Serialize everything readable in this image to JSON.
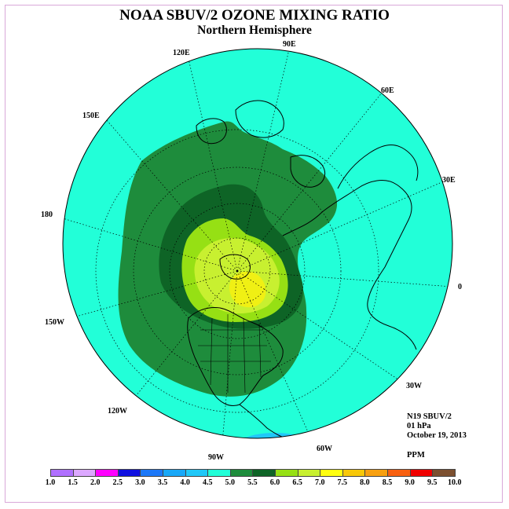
{
  "title": "NOAA SBUV/2 OZONE MIXING RATIO",
  "subtitle": "Northern Hemisphere",
  "map": {
    "projection": "north-polar-stereographic",
    "longitude_labels": [
      "90E",
      "60E",
      "30E",
      "0",
      "30W",
      "60W",
      "90W",
      "120W",
      "150W",
      "180",
      "150E",
      "120E"
    ],
    "ocean_color": "#22ffd8",
    "contour_colors": {
      "4.5-5.0": "#22ffd8",
      "5.0-5.5": "#1e8c3c",
      "5.5-6.0": "#0e6426",
      "6.0-6.5": "#96e014",
      "6.5-7.0": "#c8f030",
      "7.0-7.5": "#f0f014"
    }
  },
  "info": {
    "instrument": "N19 SBUV/2",
    "level": "01 hPa",
    "date": "October 19, 2013",
    "units": "PPM"
  },
  "colorbar": {
    "ticks": [
      "1.0",
      "1.5",
      "2.0",
      "2.5",
      "3.0",
      "3.5",
      "4.0",
      "4.5",
      "5.0",
      "5.5",
      "6.0",
      "6.5",
      "7.0",
      "7.5",
      "8.0",
      "8.5",
      "9.0",
      "9.5",
      "10.0"
    ],
    "colors": [
      "#b070ff",
      "#dca8ff",
      "#ff00ff",
      "#1010e0",
      "#1c78f8",
      "#18a8f8",
      "#20c8f8",
      "#22ffd8",
      "#1e8c3c",
      "#0e6426",
      "#96e014",
      "#c8f030",
      "#ffff10",
      "#f8c808",
      "#f8a010",
      "#f86010",
      "#f00000",
      "#7c5030"
    ]
  }
}
